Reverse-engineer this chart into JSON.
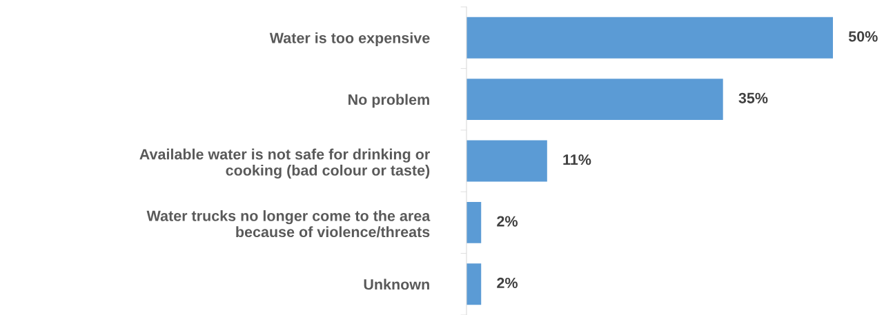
{
  "chart_data": {
    "type": "bar",
    "orientation": "horizontal",
    "categories": [
      "Water is too expensive",
      "No problem",
      "Available water is not safe for drinking or\ncooking (bad colour or taste)",
      "Water trucks no longer come to the area\nbecause of violence/threats",
      "Unknown"
    ],
    "values": [
      50,
      35,
      11,
      2,
      2
    ],
    "value_labels": [
      "50%",
      "35%",
      "11%",
      "2%",
      "2%"
    ],
    "color": "#5b9bd5"
  }
}
